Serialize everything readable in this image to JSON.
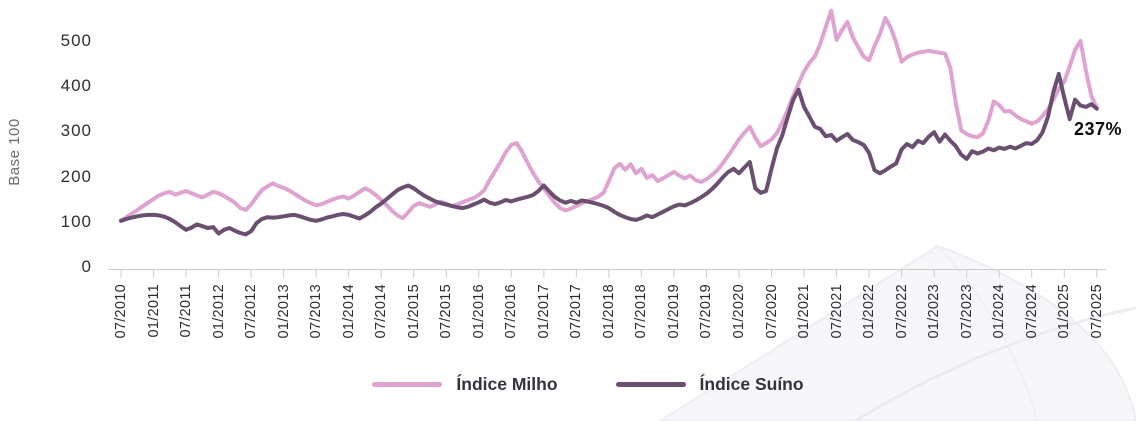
{
  "chart_data": {
    "type": "line",
    "title": "",
    "ylabel": "Base 100",
    "ylim": [
      0,
      570
    ],
    "y_ticks": [
      0,
      100,
      200,
      300,
      400,
      500
    ],
    "grid": false,
    "legend_position": "bottom-center",
    "x_frequency": "monthly",
    "x_range": [
      "07/2010",
      "07/2025"
    ],
    "x_tick_labels": [
      "07/2010",
      "01/2011",
      "07/2011",
      "01/2012",
      "07/2012",
      "01/2013",
      "07/2013",
      "01/2014",
      "07/2014",
      "01/2015",
      "07/2015",
      "01/2016",
      "07/2016",
      "01/2017",
      "07/2017",
      "01/2018",
      "07/2018",
      "01/2019",
      "07/2019",
      "01/2020",
      "07/2020",
      "01/2021",
      "07/2021",
      "01/2022",
      "07/2022",
      "01/2023",
      "07/2023",
      "01/2024",
      "07/2024",
      "01/2025",
      "07/2025"
    ],
    "annotation": {
      "text": "237%",
      "attached_to": "series end (07/2025)"
    },
    "axis_color": "#cccccc",
    "series": [
      {
        "name": "Índice Milho",
        "color": "#DEA3D0",
        "values": [
          100,
          108,
          116,
          124,
          132,
          140,
          148,
          156,
          161,
          164,
          158,
          162,
          166,
          161,
          156,
          152,
          158,
          164,
          161,
          155,
          148,
          140,
          128,
          124,
          136,
          153,
          168,
          176,
          183,
          177,
          173,
          167,
          160,
          152,
          145,
          139,
          134,
          137,
          142,
          147,
          151,
          154,
          149,
          156,
          164,
          172,
          166,
          157,
          146,
          135,
          122,
          112,
          106,
          119,
          133,
          139,
          135,
          131,
          136,
          142,
          138,
          132,
          136,
          141,
          146,
          150,
          157,
          168,
          190,
          210,
          230,
          252,
          268,
          272,
          252,
          228,
          206,
          187,
          172,
          155,
          140,
          128,
          123,
          127,
          133,
          139,
          143,
          148,
          153,
          162,
          188,
          216,
          226,
          213,
          225,
          205,
          215,
          195,
          201,
          188,
          194,
          201,
          208,
          200,
          194,
          200,
          190,
          186,
          192,
          201,
          212,
          227,
          244,
          262,
          280,
          295,
          308,
          284,
          265,
          272,
          280,
          294,
          318,
          346,
          376,
          404,
          430,
          450,
          464,
          492,
          528,
          565,
          500,
          522,
          540,
          506,
          484,
          463,
          455,
          487,
          513,
          549,
          527,
          494,
          452,
          462,
          468,
          472,
          474,
          476,
          474,
          472,
          470,
          438,
          360,
          300,
          292,
          287,
          285,
          293,
          322,
          364,
          356,
          342,
          343,
          333,
          325,
          320,
          315,
          320,
          332,
          347,
          368,
          392,
          408,
          442,
          478,
          498,
          432,
          376,
          350
        ]
      },
      {
        "name": "Índice Suíno",
        "color": "#6A4F70",
        "values": [
          100,
          104,
          107,
          110,
          112,
          113,
          113,
          112,
          109,
          104,
          97,
          88,
          80,
          85,
          92,
          88,
          84,
          86,
          72,
          80,
          84,
          78,
          73,
          70,
          77,
          95,
          104,
          108,
          107,
          108,
          110,
          112,
          113,
          110,
          106,
          102,
          100,
          103,
          107,
          110,
          113,
          115,
          113,
          109,
          105,
          112,
          120,
          130,
          138,
          148,
          158,
          168,
          174,
          178,
          172,
          163,
          155,
          149,
          143,
          139,
          136,
          133,
          130,
          128,
          131,
          136,
          141,
          147,
          140,
          137,
          141,
          146,
          143,
          147,
          150,
          153,
          157,
          166,
          178,
          165,
          153,
          145,
          140,
          144,
          140,
          145,
          143,
          140,
          137,
          133,
          128,
          120,
          113,
          108,
          104,
          102,
          106,
          112,
          108,
          114,
          120,
          126,
          132,
          136,
          134,
          139,
          145,
          152,
          160,
          170,
          182,
          196,
          208,
          215,
          205,
          218,
          230,
          172,
          162,
          166,
          215,
          260,
          290,
          330,
          368,
          390,
          352,
          330,
          308,
          303,
          287,
          290,
          277,
          285,
          292,
          279,
          274,
          268,
          250,
          212,
          205,
          212,
          220,
          227,
          258,
          270,
          263,
          277,
          272,
          286,
          296,
          275,
          291,
          277,
          265,
          246,
          237,
          254,
          249,
          253,
          260,
          256,
          262,
          259,
          264,
          260,
          266,
          272,
          270,
          278,
          296,
          330,
          385,
          425,
          372,
          325,
          368,
          355,
          352,
          358,
          348
        ]
      }
    ]
  }
}
